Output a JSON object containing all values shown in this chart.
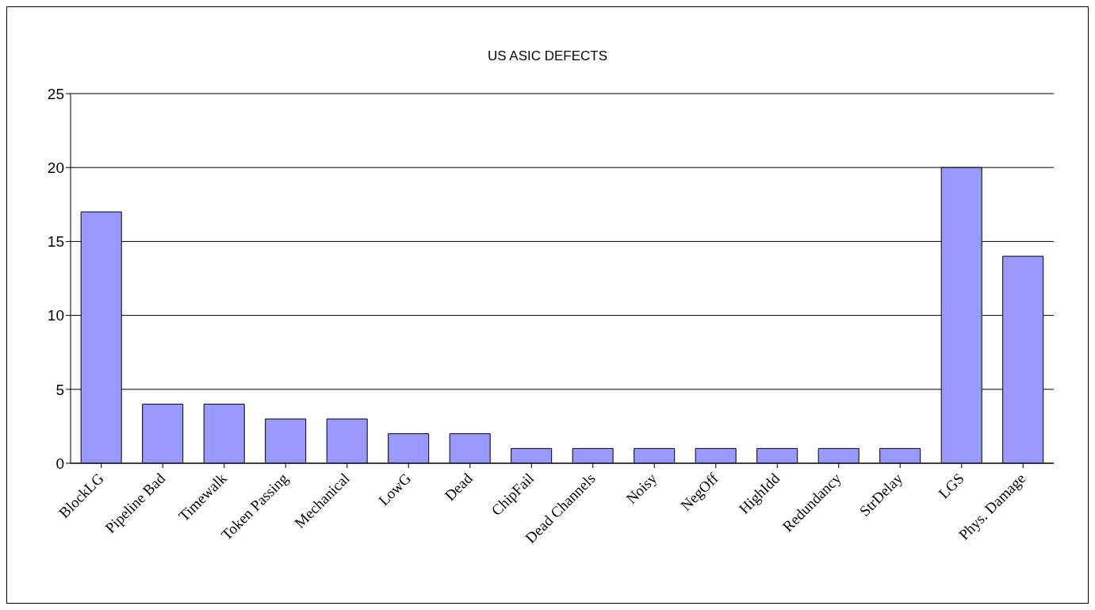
{
  "chart_data": {
    "type": "bar",
    "title": "US ASIC DEFECTS",
    "categories": [
      "BlockLG",
      "Pipeline Bad",
      "Timewalk",
      "Token Passing",
      "Mechanical",
      "LowG",
      "Dead",
      "ChipFail",
      "Dead Channels",
      "Noisy",
      "NegOff",
      "HighIdd",
      "Redundancy",
      "StrDelay",
      "LGS",
      "Phys. Damage"
    ],
    "values": [
      17,
      4,
      4,
      3,
      3,
      2,
      2,
      1,
      1,
      1,
      1,
      1,
      1,
      1,
      20,
      14
    ],
    "color": "#9999ff",
    "ylim": [
      0,
      25
    ],
    "yticks": [
      0,
      5,
      10,
      15,
      20,
      25
    ],
    "grid": "y",
    "legend": false
  }
}
